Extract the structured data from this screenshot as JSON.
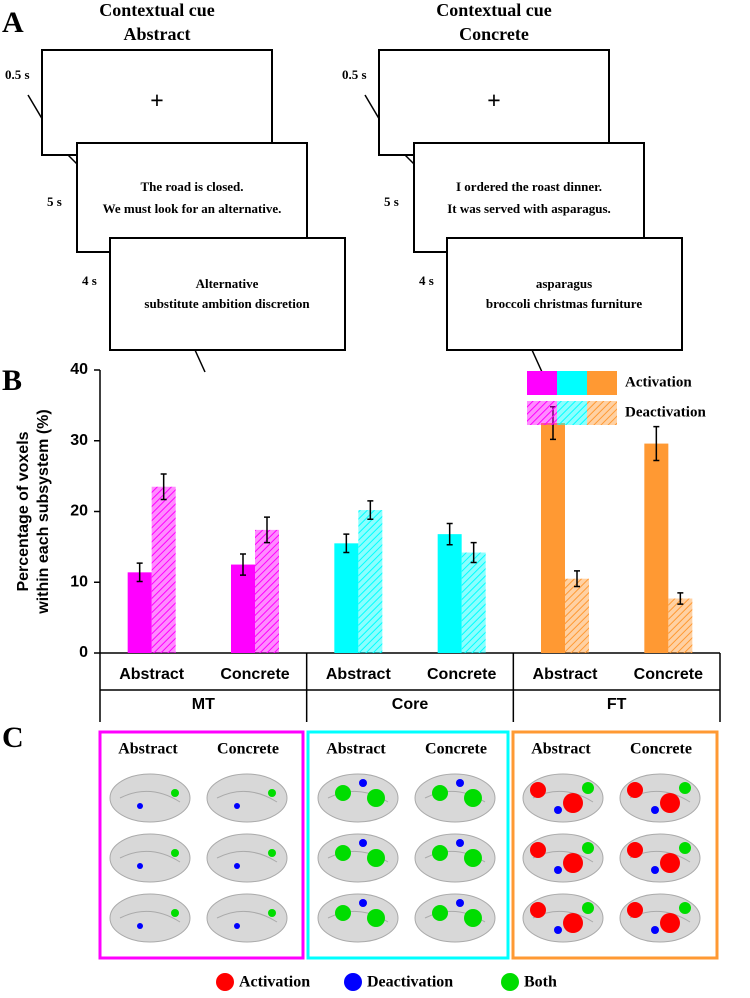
{
  "panel_labels": [
    "A",
    "B",
    "C"
  ],
  "panel_a": {
    "durations": [
      "0.5 s",
      "5 s",
      "4 s"
    ],
    "conditions": [
      {
        "cue_title": "Contextual cue",
        "cue": "Abstract",
        "fixation": "+",
        "sentence": [
          "The road is closed.",
          "We must look for an alternative."
        ],
        "words": [
          "Alternative",
          "substitute ambition discretion"
        ]
      },
      {
        "cue_title": "Contextual cue",
        "cue": "Concrete",
        "fixation": "+",
        "sentence": [
          "I ordered the roast dinner.",
          "It was served with asparagus."
        ],
        "words": [
          "asparagus",
          "broccoli christmas furniture"
        ]
      }
    ]
  },
  "chart_data": {
    "type": "bar",
    "ylabel": [
      "Percentage of voxels",
      "within each subsystem (%)"
    ],
    "categories": [
      "Abstract",
      "Concrete",
      "Abstract",
      "Concrete",
      "Abstract",
      "Concrete"
    ],
    "groups": [
      "MT",
      "Core",
      "FT"
    ],
    "group_colors": [
      "#ff00ff",
      "#00ffff",
      "#ff9933"
    ],
    "series": [
      {
        "name": "Activation",
        "pattern": "solid",
        "values": [
          11.4,
          12.5,
          15.5,
          16.8,
          32.5,
          29.6
        ],
        "errors": [
          1.3,
          1.5,
          1.3,
          1.5,
          2.3,
          2.4
        ]
      },
      {
        "name": "Deactivation",
        "pattern": "hatched",
        "values": [
          23.5,
          17.4,
          20.2,
          14.2,
          10.5,
          7.7
        ],
        "errors": [
          1.8,
          1.8,
          1.3,
          1.4,
          1.1,
          0.8
        ]
      }
    ],
    "ylim": [
      0,
      40
    ],
    "yticks": [
      0,
      10,
      20,
      30,
      40
    ],
    "grid": false,
    "legend": "upper right"
  },
  "panel_c": {
    "columns": [
      "Abstract",
      "Concrete"
    ],
    "legend": [
      {
        "name": "Activation",
        "color": "#ff0000"
      },
      {
        "name": "Deactivation",
        "color": "#0000ff"
      },
      {
        "name": "Both",
        "color": "#00dd00"
      }
    ]
  }
}
